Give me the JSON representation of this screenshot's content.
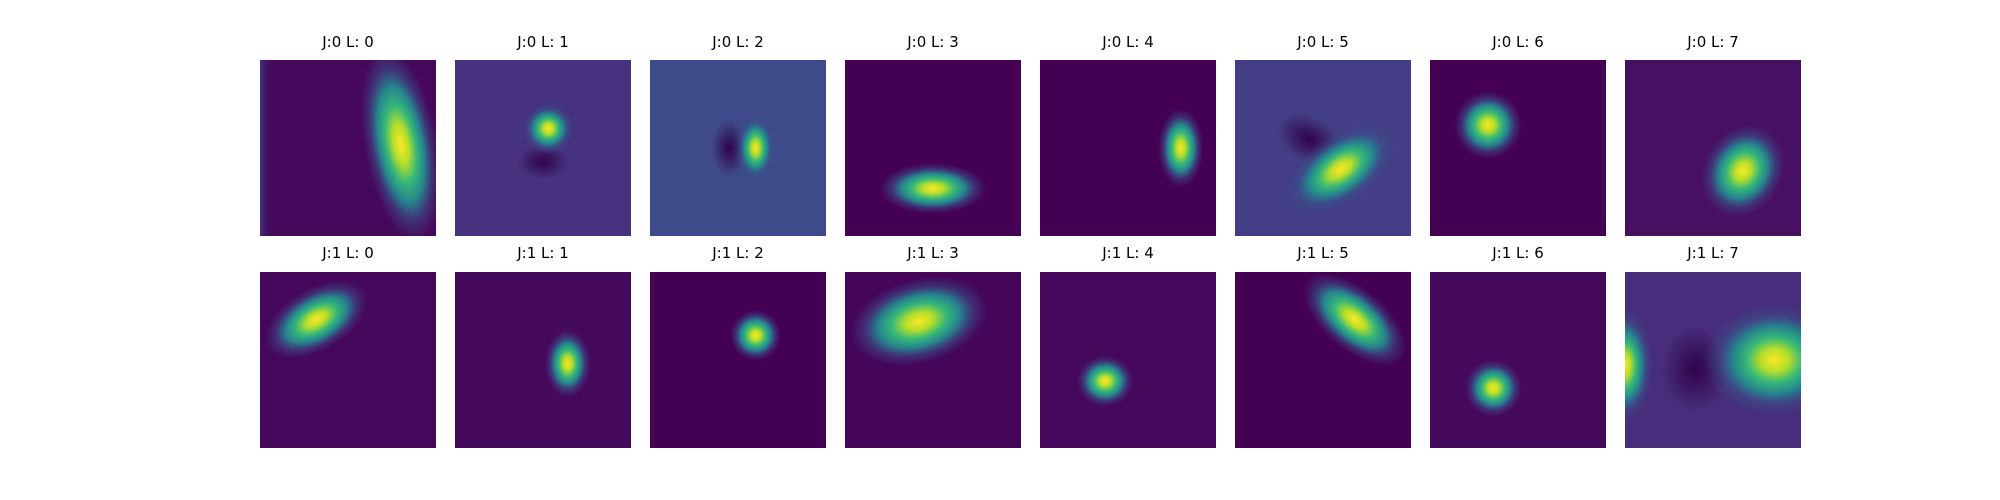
{
  "panels": [
    {
      "title": "J:0 L: 0"
    },
    {
      "title": "J:0 L: 1"
    },
    {
      "title": "J:0 L: 2"
    },
    {
      "title": "J:0 L: 3"
    },
    {
      "title": "J:0 L: 4"
    },
    {
      "title": "J:0 L: 5"
    },
    {
      "title": "J:0 L: 6"
    },
    {
      "title": "J:0 L: 7"
    },
    {
      "title": "J:1 L: 0"
    },
    {
      "title": "J:1 L: 1"
    },
    {
      "title": "J:1 L: 2"
    },
    {
      "title": "J:1 L: 3"
    },
    {
      "title": "J:1 L: 4"
    },
    {
      "title": "J:1 L: 5"
    },
    {
      "title": "J:1 L: 6"
    },
    {
      "title": "J:1 L: 7"
    }
  ]
}
